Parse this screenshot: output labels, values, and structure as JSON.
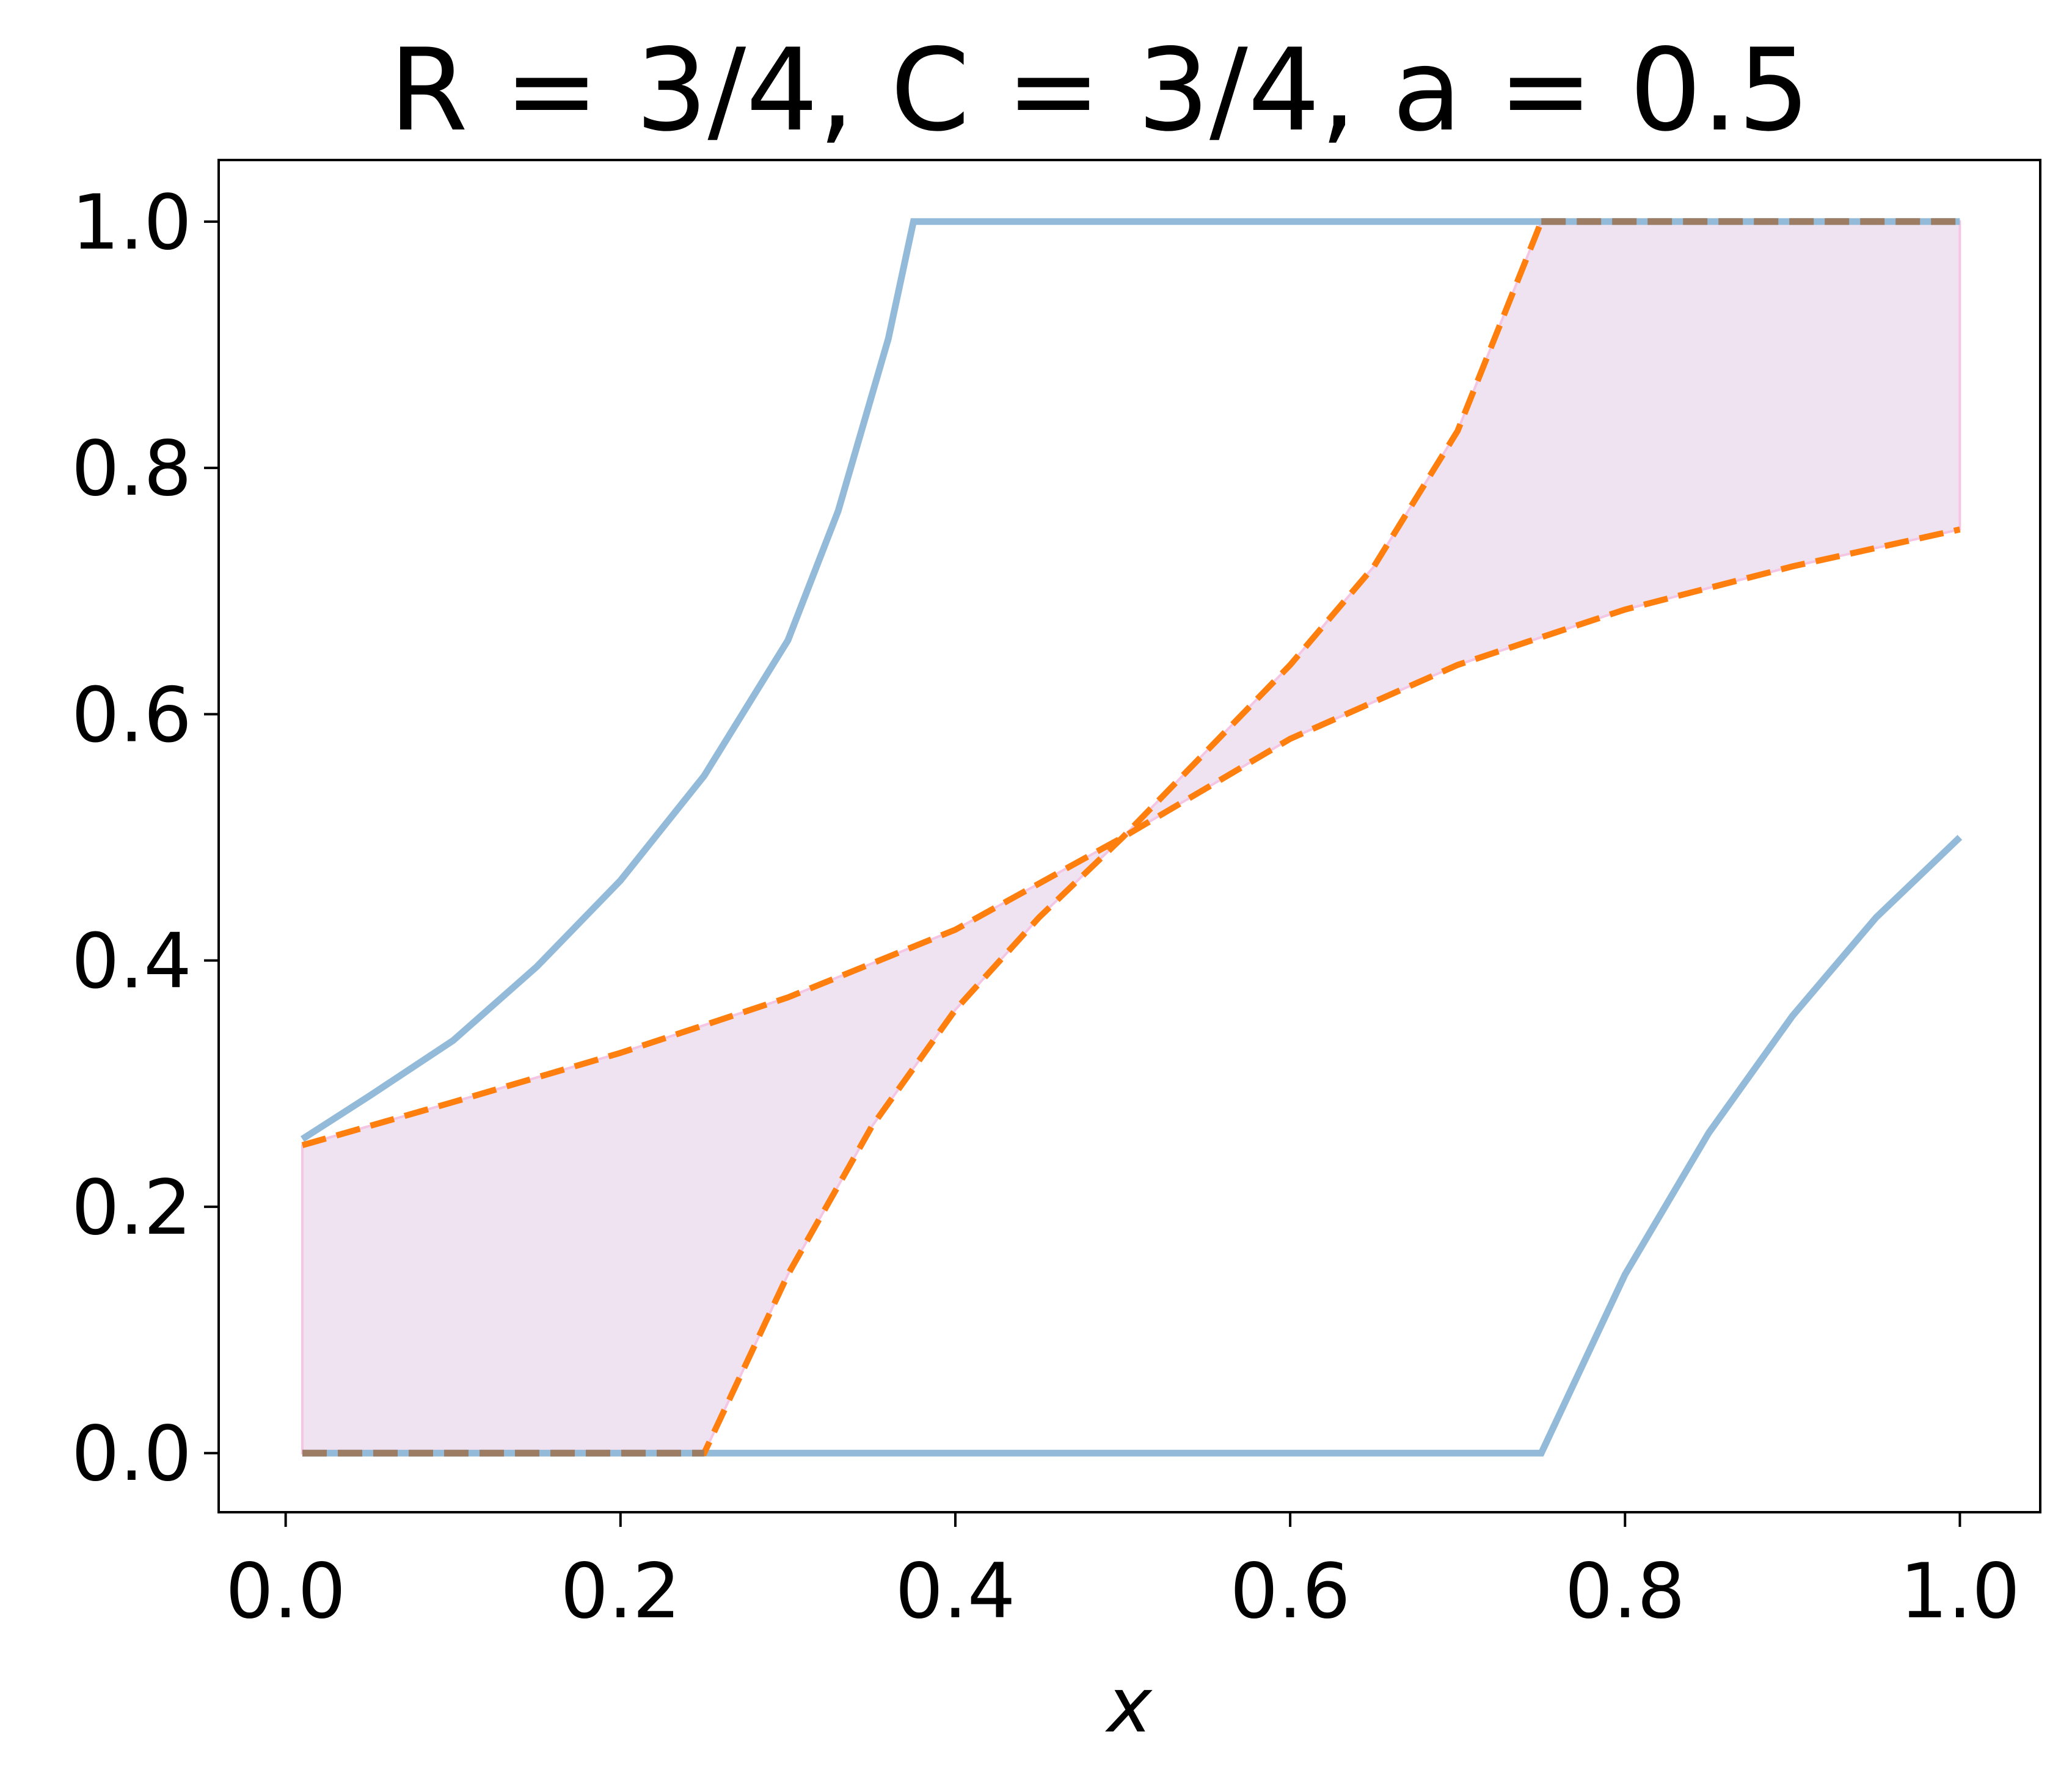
{
  "chart_data": {
    "type": "line",
    "title": "R = 3/4, C = 3/4, a = 0.5",
    "xlabel": "x",
    "ylabel": "",
    "xlim": [
      -0.04,
      1.048
    ],
    "ylim": [
      -0.048,
      1.05
    ],
    "xticks": [
      {
        "value": 0.0,
        "label": "0.0"
      },
      {
        "value": 0.2,
        "label": "0.2"
      },
      {
        "value": 0.4,
        "label": "0.4"
      },
      {
        "value": 0.6,
        "label": "0.6"
      },
      {
        "value": 0.8,
        "label": "0.8"
      },
      {
        "value": 1.0,
        "label": "1.0"
      }
    ],
    "yticks": [
      {
        "value": 0.0,
        "label": "0.0"
      },
      {
        "value": 0.2,
        "label": "0.2"
      },
      {
        "value": 0.4,
        "label": "0.4"
      },
      {
        "value": 0.6,
        "label": "0.6"
      },
      {
        "value": 0.8,
        "label": "0.8"
      },
      {
        "value": 1.0,
        "label": "1.0"
      }
    ],
    "grid": false,
    "legend": "none",
    "colors": {
      "blue_line": "#93bbd9",
      "orange_dash": "#ff7f0e",
      "fill": "#f0e3f1",
      "fill_edge": "#f4c6e4",
      "brown_dash": "#9c7d63"
    },
    "shaded_band": {
      "x_range": [
        0.01,
        1.0
      ],
      "note_values": "region between the two orange dashed curves"
    },
    "series": [
      {
        "style": "blue-solid",
        "x": [
          0.01,
          0.05,
          0.1,
          0.15,
          0.2,
          0.25,
          0.3,
          0.33,
          0.36,
          0.375,
          0.4,
          0.5,
          0.6,
          0.7,
          0.8,
          0.9,
          1.0
        ],
        "y": [
          0.255,
          0.29,
          0.335,
          0.395,
          0.465,
          0.55,
          0.66,
          0.765,
          0.905,
          1.0,
          1.0,
          1.0,
          1.0,
          1.0,
          1.0,
          1.0,
          1.0
        ]
      },
      {
        "style": "blue-solid",
        "x": [
          0.01,
          0.2,
          0.4,
          0.6,
          0.75,
          0.8,
          0.85,
          0.9,
          0.95,
          1.0
        ],
        "y": [
          0.0,
          0.0,
          0.0,
          0.0,
          0.0,
          0.145,
          0.26,
          0.355,
          0.435,
          0.5
        ]
      },
      {
        "style": "orange-dashed",
        "x": [
          0.01,
          0.1,
          0.2,
          0.3,
          0.4,
          0.5,
          0.6,
          0.7,
          0.8,
          0.9,
          1.0
        ],
        "y": [
          0.25,
          0.285,
          0.325,
          0.37,
          0.425,
          0.5,
          0.58,
          0.64,
          0.685,
          0.72,
          0.75
        ]
      },
      {
        "style": "orange-dashed",
        "x": [
          0.01,
          0.25,
          0.3,
          0.35,
          0.4,
          0.45,
          0.5,
          0.55,
          0.6,
          0.65,
          0.7,
          0.75
        ],
        "y": [
          0.0,
          0.0,
          0.145,
          0.265,
          0.36,
          0.435,
          0.5,
          0.57,
          0.64,
          0.72,
          0.83,
          1.0
        ]
      },
      {
        "style": "brown-dashed",
        "x": [
          0.01,
          0.25
        ],
        "y": [
          0.0,
          0.0
        ]
      },
      {
        "style": "brown-dashed",
        "x": [
          0.75,
          1.0
        ],
        "y": [
          1.0,
          1.0
        ]
      }
    ]
  }
}
